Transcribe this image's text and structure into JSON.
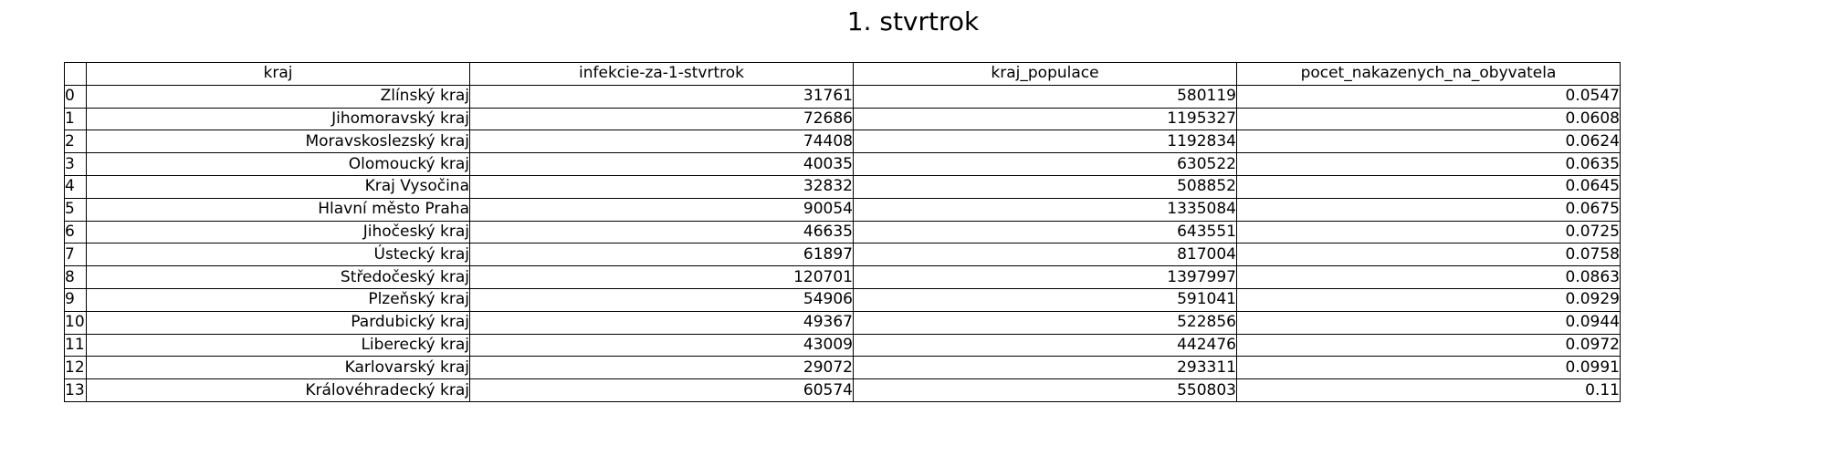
{
  "chart_data": {
    "type": "table",
    "title": "1. stvrtrok",
    "columns": [
      "kraj",
      "infekcie-za-1-stvrtrok",
      "kraj_populace",
      "pocet_nakazenych_na_obyvatela"
    ],
    "rows": [
      {
        "index": "0",
        "kraj": "Zlínský kraj",
        "infekcie": "31761",
        "populace": "580119",
        "pocet": "0.0547"
      },
      {
        "index": "1",
        "kraj": "Jihomoravský kraj",
        "infekcie": "72686",
        "populace": "1195327",
        "pocet": "0.0608"
      },
      {
        "index": "2",
        "kraj": "Moravskoslezský kraj",
        "infekcie": "74408",
        "populace": "1192834",
        "pocet": "0.0624"
      },
      {
        "index": "3",
        "kraj": "Olomoucký kraj",
        "infekcie": "40035",
        "populace": "630522",
        "pocet": "0.0635"
      },
      {
        "index": "4",
        "kraj": "Kraj Vysočina",
        "infekcie": "32832",
        "populace": "508852",
        "pocet": "0.0645"
      },
      {
        "index": "5",
        "kraj": "Hlavní město Praha",
        "infekcie": "90054",
        "populace": "1335084",
        "pocet": "0.0675"
      },
      {
        "index": "6",
        "kraj": "Jihočeský kraj",
        "infekcie": "46635",
        "populace": "643551",
        "pocet": "0.0725"
      },
      {
        "index": "7",
        "kraj": "Ústecký kraj",
        "infekcie": "61897",
        "populace": "817004",
        "pocet": "0.0758"
      },
      {
        "index": "8",
        "kraj": "Středočeský kraj",
        "infekcie": "120701",
        "populace": "1397997",
        "pocet": "0.0863"
      },
      {
        "index": "9",
        "kraj": "Plzeňský kraj",
        "infekcie": "54906",
        "populace": "591041",
        "pocet": "0.0929"
      },
      {
        "index": "10",
        "kraj": "Pardubický kraj",
        "infekcie": "49367",
        "populace": "522856",
        "pocet": "0.0944"
      },
      {
        "index": "11",
        "kraj": "Liberecký kraj",
        "infekcie": "43009",
        "populace": "442476",
        "pocet": "0.0972"
      },
      {
        "index": "12",
        "kraj": "Karlovarský kraj",
        "infekcie": "29072",
        "populace": "293311",
        "pocet": "0.0991"
      },
      {
        "index": "13",
        "kraj": "Královéhradecký kraj",
        "infekcie": "60574",
        "populace": "550803",
        "pocet": "0.11"
      }
    ]
  }
}
